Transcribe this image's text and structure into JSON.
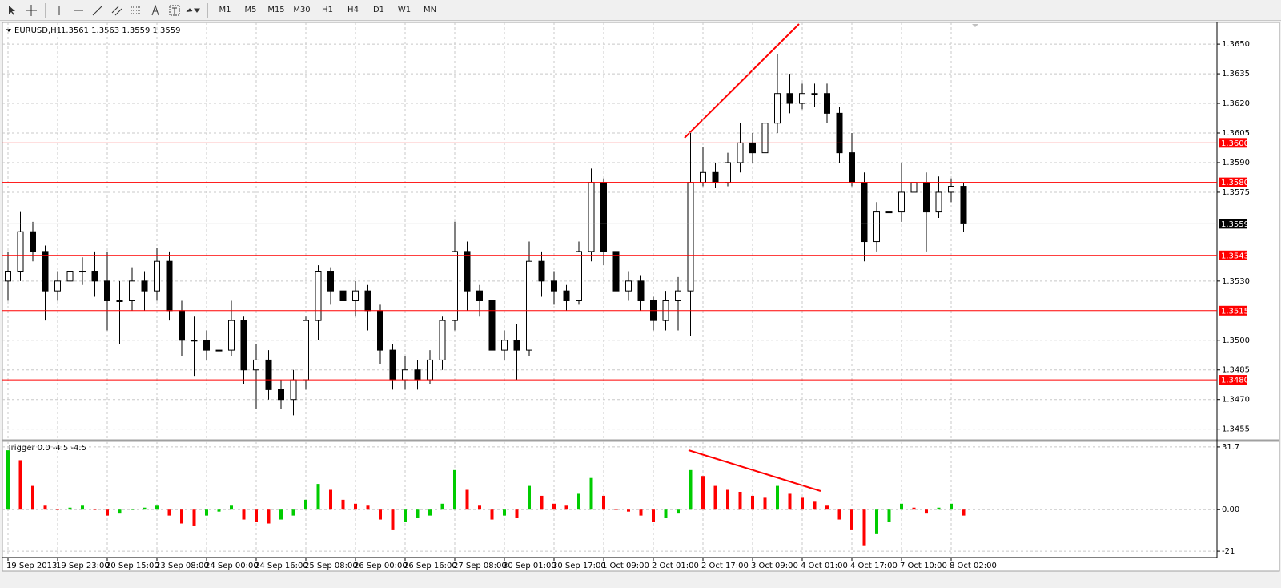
{
  "toolbar": {
    "timeframes": [
      "M1",
      "M5",
      "M15",
      "M30",
      "H1",
      "H4",
      "D1",
      "W1",
      "MN"
    ]
  },
  "chart_data": [
    {
      "type": "candlestick",
      "title": "EURUSD,H1",
      "subtitle": "1.3561 1.3563 1.3559 1.3559",
      "categories": [
        "19 Sep 2013",
        null,
        null,
        null,
        "19 Sep 23:00",
        null,
        null,
        null,
        "20 Sep 15:00",
        null,
        null,
        null,
        "23 Sep 08:00",
        null,
        null,
        null,
        "24 Sep 00:00",
        null,
        null,
        null,
        "24 Sep 16:00",
        null,
        null,
        null,
        "25 Sep 08:00",
        null,
        null,
        null,
        "26 Sep 00:00",
        null,
        null,
        null,
        "26 Sep 16:00",
        null,
        null,
        null,
        "27 Sep 08:00",
        null,
        null,
        null,
        "30 Sep 01:00",
        null,
        null,
        null,
        "30 Sep 17:00",
        null,
        null,
        null,
        "1 Oct 09:00",
        null,
        null,
        null,
        "2 Oct 01:00",
        null,
        null,
        null,
        "2 Oct 17:00",
        null,
        null,
        null,
        "3 Oct 09:00",
        null,
        null,
        null,
        "4 Oct 01:00",
        null,
        null,
        null,
        "4 Oct 17:00",
        null,
        null,
        null,
        "7 Oct 10:00",
        null,
        null,
        null,
        "8 Oct 02:00",
        null
      ],
      "open": [
        1.353,
        1.3535,
        1.3555,
        1.3545,
        1.3525,
        1.353,
        1.3535,
        1.3535,
        1.353,
        1.352,
        1.352,
        1.353,
        1.3525,
        1.354,
        1.3515,
        1.35,
        1.35,
        1.3495,
        1.3495,
        1.351,
        1.3485,
        1.349,
        1.3475,
        1.347,
        1.348,
        1.351,
        1.3535,
        1.3525,
        1.352,
        1.3525,
        1.3515,
        1.3495,
        1.348,
        1.3485,
        1.348,
        1.349,
        1.351,
        1.3545,
        1.3525,
        1.352,
        1.3495,
        1.35,
        1.3495,
        1.354,
        1.353,
        1.3525,
        1.352,
        1.3545,
        1.358,
        1.3545,
        1.3525,
        1.353,
        1.352,
        1.351,
        1.352,
        1.3525,
        1.358,
        1.3585,
        1.358,
        1.359,
        1.36,
        1.3595,
        1.361,
        1.3625,
        1.362,
        1.3625,
        1.3625,
        1.3615,
        1.3595,
        1.358,
        1.355,
        1.3565,
        1.3565,
        1.3575,
        1.358,
        1.3565,
        1.3575,
        1.3578
      ],
      "high": [
        1.3545,
        1.3565,
        1.356,
        1.3548,
        1.3535,
        1.354,
        1.3542,
        1.3545,
        1.3545,
        1.353,
        1.3537,
        1.3535,
        1.3547,
        1.3545,
        1.352,
        1.3512,
        1.3505,
        1.35,
        1.352,
        1.3512,
        1.3498,
        1.3495,
        1.348,
        1.3485,
        1.3512,
        1.3538,
        1.3537,
        1.353,
        1.353,
        1.3528,
        1.3518,
        1.3498,
        1.3492,
        1.349,
        1.3495,
        1.3512,
        1.356,
        1.355,
        1.3528,
        1.3522,
        1.3505,
        1.3508,
        1.355,
        1.3545,
        1.3535,
        1.3528,
        1.355,
        1.3587,
        1.3582,
        1.355,
        1.3535,
        1.3533,
        1.3522,
        1.3525,
        1.3532,
        1.3605,
        1.3598,
        1.359,
        1.3595,
        1.361,
        1.3605,
        1.3612,
        1.3645,
        1.3635,
        1.363,
        1.363,
        1.363,
        1.3618,
        1.3605,
        1.3585,
        1.357,
        1.357,
        1.359,
        1.3585,
        1.3585,
        1.3583,
        1.3582,
        1.358
      ],
      "low": [
        1.352,
        1.353,
        1.354,
        1.351,
        1.352,
        1.3527,
        1.3528,
        1.3522,
        1.3505,
        1.3498,
        1.3515,
        1.3515,
        1.352,
        1.351,
        1.3492,
        1.3482,
        1.349,
        1.349,
        1.3492,
        1.3478,
        1.3465,
        1.347,
        1.3465,
        1.3462,
        1.3475,
        1.35,
        1.3518,
        1.3515,
        1.3512,
        1.3505,
        1.3488,
        1.3475,
        1.3475,
        1.3475,
        1.3478,
        1.3485,
        1.3505,
        1.3515,
        1.3512,
        1.3488,
        1.349,
        1.348,
        1.3492,
        1.3522,
        1.3518,
        1.3515,
        1.3518,
        1.354,
        1.3538,
        1.3518,
        1.352,
        1.3515,
        1.3505,
        1.3505,
        1.3505,
        1.3502,
        1.3578,
        1.3577,
        1.3578,
        1.3585,
        1.359,
        1.3588,
        1.3605,
        1.3615,
        1.3617,
        1.3618,
        1.361,
        1.359,
        1.3578,
        1.354,
        1.3545,
        1.356,
        1.356,
        1.357,
        1.3545,
        1.3562,
        1.357,
        1.3555
      ],
      "close": [
        1.3535,
        1.3555,
        1.3545,
        1.3525,
        1.353,
        1.3535,
        1.3535,
        1.353,
        1.352,
        1.352,
        1.353,
        1.3525,
        1.354,
        1.3515,
        1.35,
        1.35,
        1.3495,
        1.3495,
        1.351,
        1.3485,
        1.349,
        1.3475,
        1.347,
        1.348,
        1.351,
        1.3535,
        1.3525,
        1.352,
        1.3525,
        1.3515,
        1.3495,
        1.348,
        1.3485,
        1.348,
        1.349,
        1.351,
        1.3545,
        1.3525,
        1.352,
        1.3495,
        1.35,
        1.3495,
        1.354,
        1.353,
        1.3525,
        1.352,
        1.3545,
        1.358,
        1.3545,
        1.3525,
        1.353,
        1.352,
        1.351,
        1.352,
        1.3525,
        1.358,
        1.3585,
        1.358,
        1.359,
        1.36,
        1.3595,
        1.361,
        1.3625,
        1.362,
        1.3625,
        1.3625,
        1.3615,
        1.3595,
        1.358,
        1.355,
        1.3565,
        1.3565,
        1.3575,
        1.358,
        1.3565,
        1.3575,
        1.3578,
        1.3559
      ],
      "up_color": "#ffffff",
      "down_color": "#000000",
      "edge_color": "#000000",
      "ylim": [
        1.345,
        1.3661
      ],
      "yticks": [
        {
          "value": 1.365,
          "label": "1.3650"
        },
        1.3635,
        {
          "value": 1.362,
          "label": "1.3620"
        },
        1.3605,
        {
          "value": 1.359,
          "label": "1.3590"
        },
        1.3575,
        {
          "value": 1.353,
          "label": "1.3530"
        },
        {
          "value": 1.35,
          "label": "1.3500"
        },
        1.3485,
        {
          "value": 1.347,
          "label": "1.3470"
        },
        1.3455
      ],
      "hlines": [
        {
          "value": 1.36,
          "label": "1.3600"
        },
        {
          "value": 1.358,
          "label": "1.3580"
        },
        1.3543,
        1.3515,
        {
          "value": 1.348,
          "label": "1.3480"
        }
      ],
      "hline_color": "#ff0000",
      "last_price": 1.3559,
      "last_price_color": "#000000",
      "grid": true
    },
    {
      "type": "histogram",
      "title": "Trigger 0.0 -4.5 -4.5",
      "values": [
        30,
        25,
        12,
        2,
        0,
        1,
        2,
        0,
        -3,
        -2,
        0,
        1,
        2,
        -3,
        -7,
        -8,
        -3,
        -1,
        2,
        -5,
        -6,
        -7,
        -5,
        -3,
        5,
        13,
        10,
        5,
        3,
        2,
        -5,
        -10,
        -6,
        -4,
        -3,
        3,
        20,
        10,
        2,
        -5,
        -3,
        -4,
        12,
        7,
        3,
        2,
        8,
        16,
        7,
        0,
        -1,
        -3,
        -6,
        -4,
        -2,
        20,
        17,
        12,
        10,
        9,
        7,
        6,
        12,
        8,
        6,
        4,
        2,
        -5,
        -10,
        -18,
        -12,
        -6,
        3,
        1,
        -2,
        1,
        3,
        -3
      ],
      "up_color": "#00cc00",
      "down_color": "#ff0000",
      "ylim": [
        -23.8,
        34.5
      ],
      "yticks": [
        31.7,
        {
          "value": 0,
          "label": "0.00"
        },
        -21
      ],
      "grid": true
    }
  ]
}
